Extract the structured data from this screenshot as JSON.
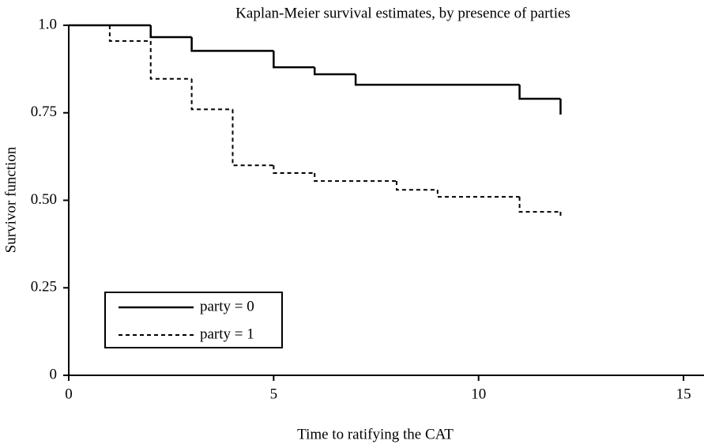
{
  "chart_data": {
    "type": "step",
    "title": "Kaplan-Meier survival estimates, by presence of parties",
    "x_label": "Time to ratifying the CAT",
    "y_label": "Survivor function",
    "xlim": [
      0,
      15.5
    ],
    "ylim": [
      0,
      1
    ],
    "xticks": [
      0,
      5,
      10,
      15
    ],
    "yticks": [
      0,
      {
        "value": 0.25,
        "label": "0.25"
      },
      {
        "value": 0.5,
        "label": "0.50"
      },
      {
        "value": 0.75,
        "label": "0.75"
      },
      {
        "value": 1,
        "label": "1.0"
      }
    ],
    "legend": "lower left",
    "series": [
      {
        "name": "party = 0",
        "color": "#000000",
        "dash": "solid",
        "x": [
          0,
          2,
          3,
          5,
          6,
          7,
          11,
          12
        ],
        "values": [
          1,
          0.966,
          0.927,
          0.88,
          0.86,
          0.83,
          0.79,
          0.745
        ]
      },
      {
        "name": "party = 1",
        "color": "#000000",
        "dash": "dashed",
        "x": [
          0,
          1,
          2,
          3,
          4,
          5,
          6,
          8,
          9,
          11,
          12
        ],
        "values": [
          1,
          0.955,
          0.847,
          0.76,
          0.6,
          0.578,
          0.555,
          0.53,
          0.51,
          0.467,
          0.447
        ]
      }
    ]
  }
}
